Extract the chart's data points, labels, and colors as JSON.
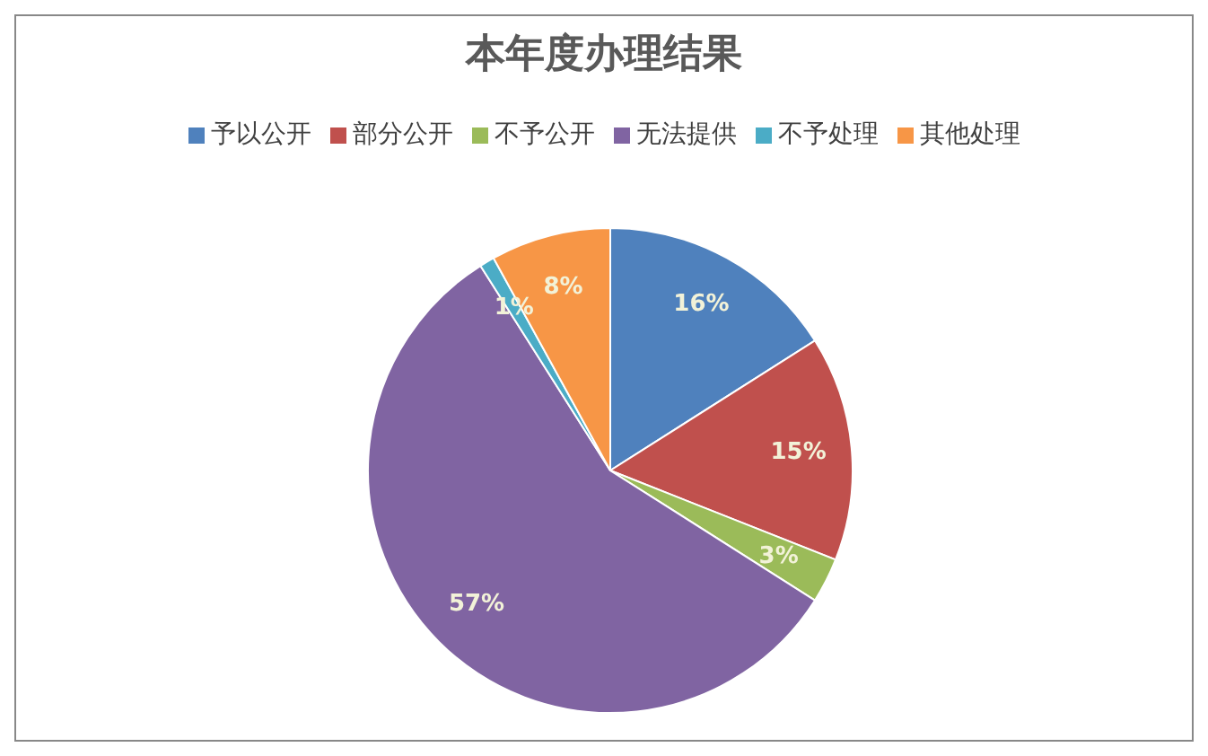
{
  "chart_data": {
    "type": "pie",
    "title": "本年度办理结果",
    "categories": [
      "予以公开",
      "部分公开",
      "不予公开",
      "无法提供",
      "不予处理",
      "其他处理"
    ],
    "values": [
      16,
      15,
      3,
      57,
      1,
      8
    ],
    "colors": [
      "#4f81bd",
      "#c0504d",
      "#9bbb59",
      "#8064a2",
      "#4bacc6",
      "#f79646"
    ],
    "value_labels": [
      "16%",
      "15%",
      "3%",
      "57%",
      "1%",
      "8%"
    ],
    "legend": "top"
  }
}
